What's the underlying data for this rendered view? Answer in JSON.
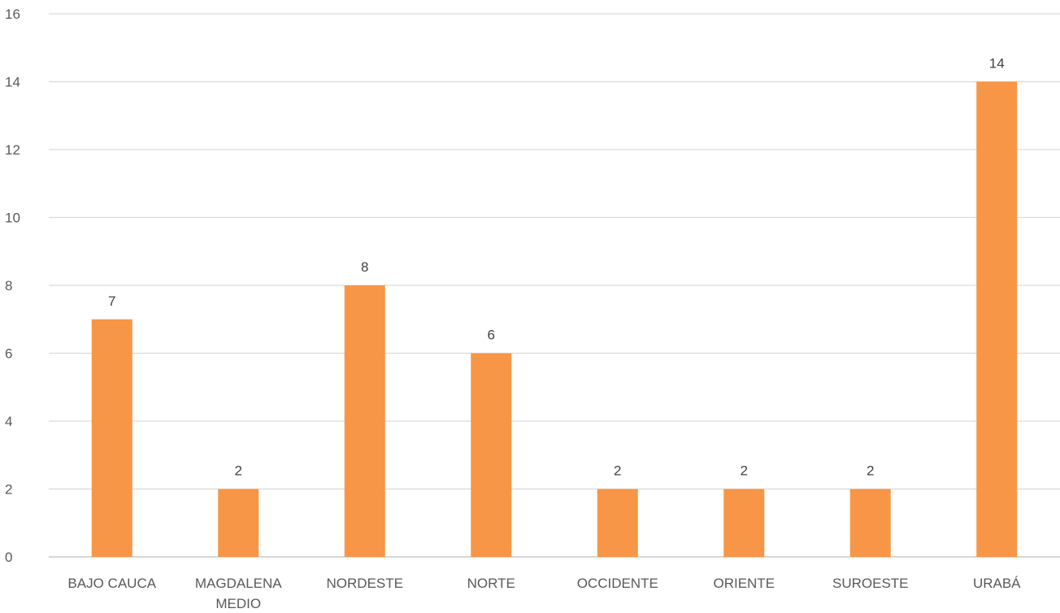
{
  "chart_data": {
    "type": "bar",
    "categories": [
      [
        "BAJO CAUCA"
      ],
      [
        "MAGDALENA",
        "MEDIO"
      ],
      [
        "NORDESTE"
      ],
      [
        "NORTE"
      ],
      [
        "OCCIDENTE"
      ],
      [
        "ORIENTE"
      ],
      [
        "SUROESTE"
      ],
      [
        "URABÁ"
      ]
    ],
    "values": [
      7,
      2,
      8,
      6,
      2,
      2,
      2,
      14
    ],
    "ylim": [
      0,
      16
    ],
    "yticks": [
      0,
      2,
      4,
      6,
      8,
      10,
      12,
      14,
      16
    ],
    "grid": true,
    "data_labels": true,
    "colors": {
      "bar": "#F79646"
    }
  }
}
